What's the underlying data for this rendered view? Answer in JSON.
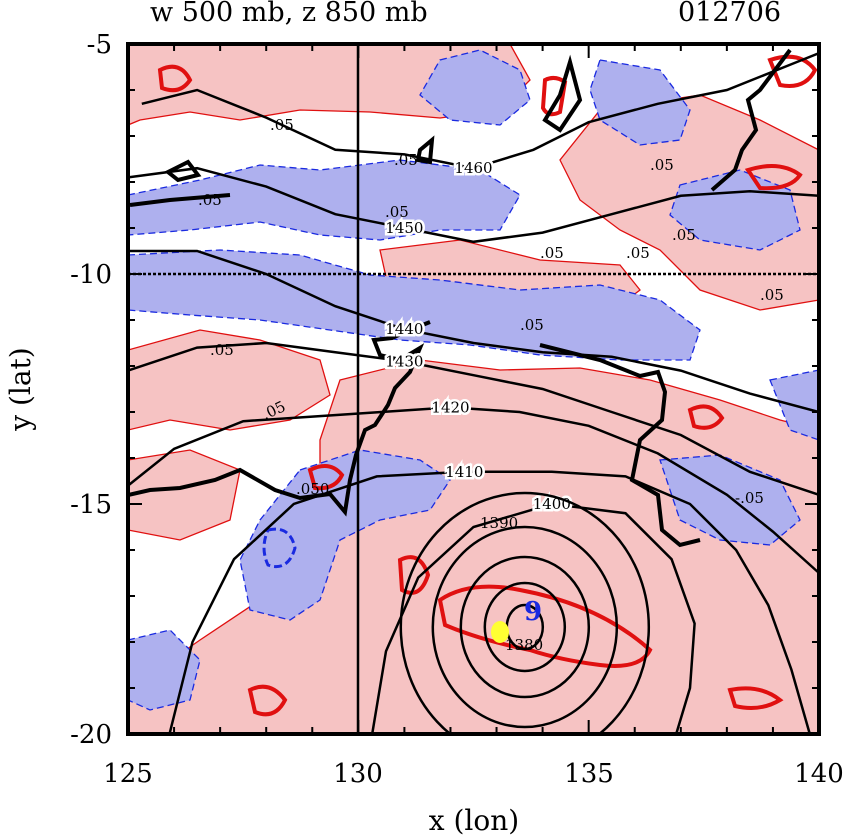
{
  "header": {
    "title_left": "w 500 mb, z 850 mb",
    "title_right": "012706"
  },
  "axes": {
    "xlabel": "x (lon)",
    "ylabel": "y (lat)",
    "xlim": [
      125,
      140
    ],
    "ylim": [
      -20,
      -5
    ],
    "xticks": [
      "125",
      "130",
      "135",
      "140"
    ],
    "yticks": [
      "-5",
      "-10",
      "-15",
      "-20"
    ]
  },
  "map": {
    "reference_lines": {
      "lon": 130,
      "lat": -10
    },
    "height_contours": [
      {
        "label": "1460",
        "points": [
          [
            125.3,
            -6.3
          ],
          [
            126.5,
            -6.0
          ],
          [
            128,
            -6.6
          ],
          [
            129.5,
            -7.3
          ],
          [
            131,
            -7.4
          ],
          [
            132.5,
            -7.7
          ],
          [
            133.8,
            -7.3
          ],
          [
            135,
            -6.7
          ],
          [
            136.5,
            -6.3
          ],
          [
            138,
            -6.0
          ],
          [
            139.5,
            -5.4
          ],
          [
            140,
            -5.2
          ]
        ]
      },
      {
        "label": "1450",
        "points": [
          [
            125,
            -7.9
          ],
          [
            126.5,
            -7.7
          ],
          [
            128,
            -8.1
          ],
          [
            129.5,
            -8.7
          ],
          [
            131,
            -9.0
          ],
          [
            132.5,
            -9.3
          ],
          [
            134,
            -9.1
          ],
          [
            135.5,
            -8.7
          ],
          [
            137,
            -8.3
          ],
          [
            138.5,
            -8.2
          ],
          [
            140,
            -8.3
          ]
        ]
      },
      {
        "label": "1440",
        "points": [
          [
            125,
            -9.5
          ],
          [
            126.5,
            -9.5
          ],
          [
            128,
            -10.0
          ],
          [
            129.5,
            -10.7
          ],
          [
            131,
            -11.2
          ],
          [
            132.5,
            -11.5
          ],
          [
            134,
            -11.7
          ],
          [
            135.5,
            -11.8
          ],
          [
            137,
            -12.1
          ],
          [
            138.5,
            -12.6
          ],
          [
            140,
            -13.0
          ]
        ]
      },
      {
        "label": "1430",
        "points": [
          [
            125,
            -12.1
          ],
          [
            126.5,
            -11.6
          ],
          [
            128,
            -11.5
          ],
          [
            129.5,
            -11.7
          ],
          [
            131,
            -11.9
          ],
          [
            132.5,
            -12.2
          ],
          [
            134,
            -12.5
          ],
          [
            135.5,
            -13.0
          ],
          [
            137,
            -13.5
          ],
          [
            138.5,
            -14.3
          ],
          [
            140,
            -14.8
          ]
        ]
      },
      {
        "label": "1420",
        "points": [
          [
            125,
            -14.6
          ],
          [
            126,
            -13.8
          ],
          [
            127.5,
            -13.2
          ],
          [
            129,
            -13.1
          ],
          [
            130.5,
            -13.0
          ],
          [
            132,
            -12.9
          ],
          [
            133.5,
            -13.0
          ],
          [
            135,
            -13.3
          ],
          [
            136.5,
            -13.9
          ],
          [
            138,
            -14.8
          ],
          [
            139,
            -15.6
          ],
          [
            140,
            -16.5
          ]
        ]
      },
      {
        "label": "1410",
        "points": [
          [
            125.9,
            -20
          ],
          [
            126.4,
            -18
          ],
          [
            127.3,
            -16.2
          ],
          [
            128.6,
            -15.0
          ],
          [
            130.4,
            -14.4
          ],
          [
            132.3,
            -14.3
          ],
          [
            134.2,
            -14.3
          ],
          [
            135.8,
            -14.4
          ],
          [
            137.2,
            -15.0
          ],
          [
            138.2,
            -16.0
          ],
          [
            138.9,
            -17.2
          ],
          [
            139.4,
            -18.6
          ],
          [
            139.8,
            -20
          ]
        ]
      },
      {
        "label": "1400",
        "points": [
          [
            130.3,
            -20
          ],
          [
            130.6,
            -18.2
          ],
          [
            131.3,
            -16.6
          ],
          [
            132.5,
            -15.5
          ],
          [
            134.2,
            -15.0
          ],
          [
            135.8,
            -15.2
          ],
          [
            136.8,
            -16.2
          ],
          [
            137.3,
            -17.6
          ],
          [
            137.2,
            -19.0
          ],
          [
            136.9,
            -20
          ]
        ]
      }
    ],
    "low_center": {
      "label": "9",
      "lon": 133.7,
      "lat": -17.5
    },
    "w_labels": [
      ".05",
      ".05",
      ".05",
      ".05",
      ".05",
      ".05",
      ".05",
      ".05",
      ".05",
      ".05",
      ".05",
      "-.05",
      ".050",
      "1390",
      "1380"
    ],
    "colors": {
      "rising": "#f6c3c3",
      "sinking": "#aeb0ee",
      "rising_line": "#e01010",
      "sinking_line": "#1a2ae0",
      "height_line": "#000000",
      "max_marker": "#ffff33"
    }
  }
}
